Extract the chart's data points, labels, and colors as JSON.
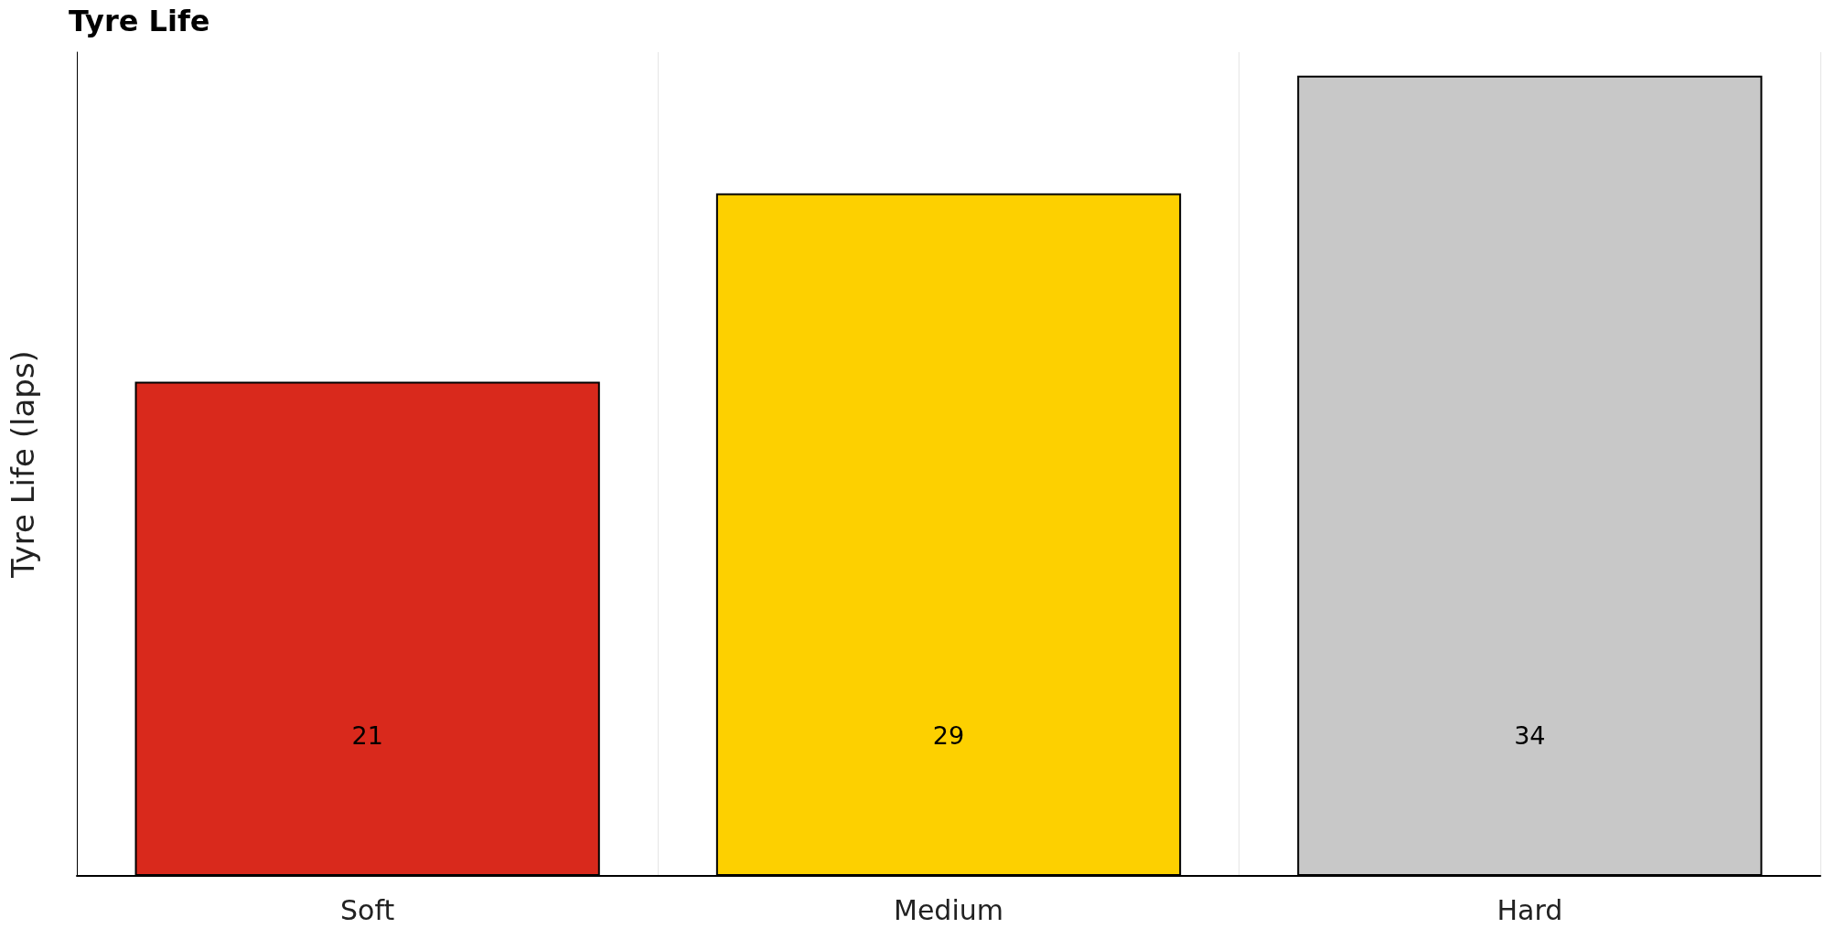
{
  "chart_data": {
    "type": "bar",
    "title": "Tyre Life",
    "ylabel": "Tyre Life (laps)",
    "categories": [
      "Soft",
      "Medium",
      "Hard"
    ],
    "values": [
      21,
      29,
      34
    ],
    "colors": [
      "#d9291c",
      "#fdd000",
      "#c8c8c8"
    ],
    "data_labels": true,
    "grid": "x",
    "tick_labels": "x"
  }
}
